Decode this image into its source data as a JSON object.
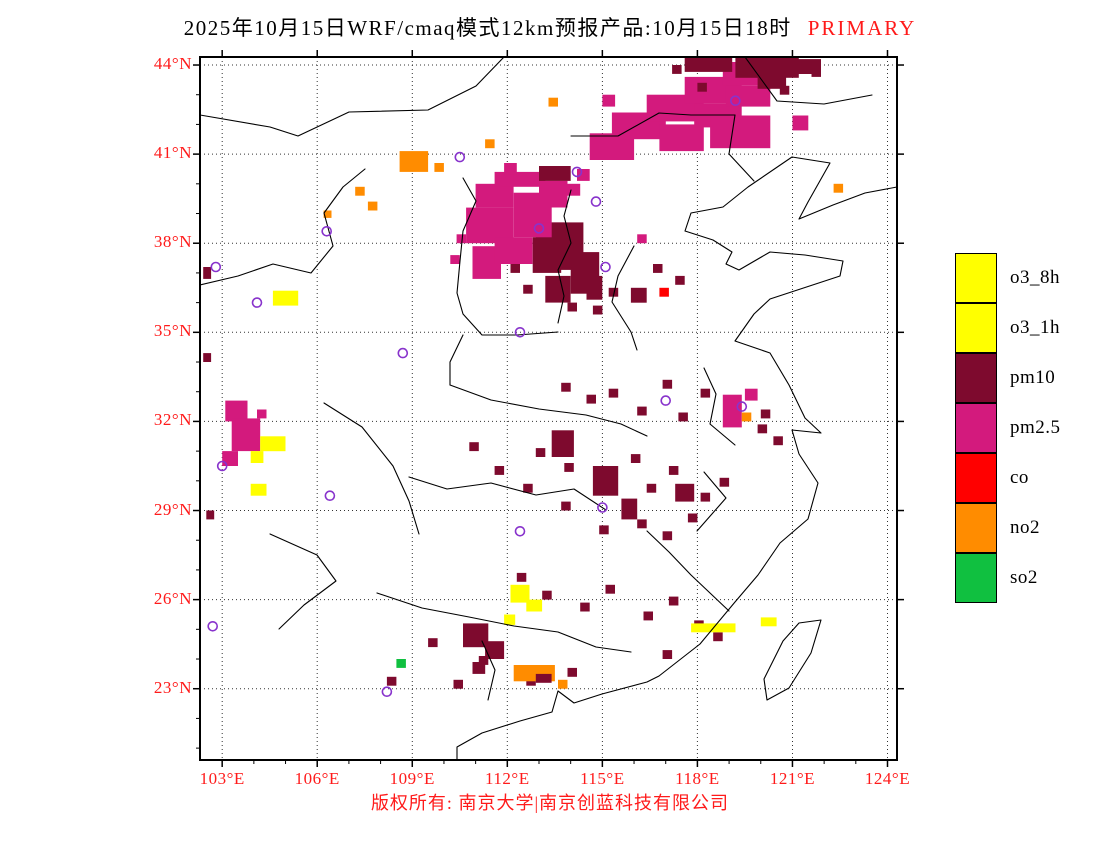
{
  "title": {
    "text": "2025年10月15日WRF/cmaq模式12km预报产品:10月15日18时",
    "tag": "PRIMARY"
  },
  "footer": {
    "text": "版权所有: 南京大学|南京创蓝科技有限公司"
  },
  "colors": {
    "axis_label": "#ff1a1a",
    "frame": "#000000",
    "station": "#8833cc",
    "pollutants": {
      "o3": "#ffff00",
      "pm10": "#7e0a2e",
      "pm25": "#d31a7d",
      "co": "#ff0000",
      "no2": "#ff8c00",
      "so2": "#10c040"
    }
  },
  "legend": {
    "items": [
      {
        "key": "o3_8h",
        "label": "o3_8h",
        "color": "#ffff00"
      },
      {
        "key": "o3_1h",
        "label": "o3_1h",
        "color": "#ffff00"
      },
      {
        "key": "pm10",
        "label": "pm10",
        "color": "#7e0a2e"
      },
      {
        "key": "pm25",
        "label": "pm2.5",
        "color": "#d31a7d"
      },
      {
        "key": "co",
        "label": "co",
        "color": "#ff0000"
      },
      {
        "key": "no2",
        "label": "no2",
        "color": "#ff8c00"
      },
      {
        "key": "so2",
        "label": "so2",
        "color": "#10c040"
      }
    ]
  },
  "map": {
    "lon_min": 102.3,
    "lon_max": 124.3,
    "lat_min": 20.6,
    "lat_max": 44.27,
    "grid_step": 3,
    "x_ticks": [
      {
        "v": 103,
        "label": "103°E"
      },
      {
        "v": 106,
        "label": "106°E"
      },
      {
        "v": 109,
        "label": "109°E"
      },
      {
        "v": 112,
        "label": "112°E"
      },
      {
        "v": 115,
        "label": "115°E"
      },
      {
        "v": 118,
        "label": "118°E"
      },
      {
        "v": 121,
        "label": "121°E"
      },
      {
        "v": 124,
        "label": "124°E"
      }
    ],
    "y_ticks": [
      {
        "v": 23,
        "label": "23°N"
      },
      {
        "v": 26,
        "label": "26°N"
      },
      {
        "v": 29,
        "label": "29°N"
      },
      {
        "v": 32,
        "label": "32°N"
      },
      {
        "v": 35,
        "label": "35°N"
      },
      {
        "v": 38,
        "label": "38°N"
      },
      {
        "v": 41,
        "label": "41°N"
      },
      {
        "v": 44,
        "label": "44°N"
      }
    ],
    "stations": [
      [
        110.5,
        40.9
      ],
      [
        114.2,
        40.4
      ],
      [
        119.2,
        42.8
      ],
      [
        114.8,
        39.4
      ],
      [
        113.0,
        38.5
      ],
      [
        106.3,
        38.4
      ],
      [
        102.8,
        37.2
      ],
      [
        104.1,
        36.0
      ],
      [
        115.1,
        37.2
      ],
      [
        112.4,
        35.0
      ],
      [
        108.7,
        34.3
      ],
      [
        117.0,
        32.7
      ],
      [
        119.4,
        32.5
      ],
      [
        103.0,
        30.5
      ],
      [
        106.4,
        29.5
      ],
      [
        112.4,
        28.3
      ],
      [
        115.0,
        29.1
      ],
      [
        102.7,
        25.1
      ],
      [
        108.2,
        22.9
      ]
    ],
    "cells": [
      [
        111.0,
        40.0,
        1.2,
        0.8,
        "pm25"
      ],
      [
        111.6,
        40.4,
        1.6,
        0.5,
        "pm25"
      ],
      [
        110.7,
        39.2,
        1.5,
        1.2,
        "pm25"
      ],
      [
        112.2,
        39.7,
        1.2,
        1.5,
        "pm25"
      ],
      [
        113.0,
        40.1,
        0.9,
        0.9,
        "pm25"
      ],
      [
        112.9,
        38.7,
        0.9,
        0.9,
        "pm25"
      ],
      [
        110.9,
        37.9,
        0.9,
        1.1,
        "pm25"
      ],
      [
        111.6,
        38.2,
        1.2,
        0.9,
        "pm25"
      ],
      [
        113.9,
        40.0,
        0.4,
        0.4,
        "pm25"
      ],
      [
        114.2,
        40.5,
        0.4,
        0.4,
        "pm25"
      ],
      [
        111.9,
        40.7,
        0.4,
        0.4,
        "pm25"
      ],
      [
        110.4,
        38.3,
        0.3,
        0.3,
        "pm25"
      ],
      [
        110.2,
        37.6,
        0.3,
        0.3,
        "pm25"
      ],
      [
        113.0,
        40.6,
        1.0,
        0.5,
        "pm10"
      ],
      [
        112.8,
        38.2,
        0.9,
        1.2,
        "pm10"
      ],
      [
        113.4,
        38.7,
        1.0,
        1.6,
        "pm10"
      ],
      [
        114.0,
        37.7,
        0.9,
        1.4,
        "pm10"
      ],
      [
        113.2,
        36.9,
        0.8,
        0.9,
        "pm10"
      ],
      [
        114.5,
        36.9,
        0.5,
        0.8,
        "pm10"
      ],
      [
        112.5,
        36.6,
        0.3,
        0.3,
        "pm10"
      ],
      [
        113.9,
        36.0,
        0.3,
        0.3,
        "pm10"
      ],
      [
        114.7,
        35.9,
        0.3,
        0.3,
        "pm10"
      ],
      [
        115.2,
        36.5,
        0.3,
        0.3,
        "pm10"
      ],
      [
        112.1,
        37.3,
        0.3,
        0.3,
        "pm10"
      ],
      [
        114.6,
        41.7,
        1.4,
        0.9,
        "pm25"
      ],
      [
        115.3,
        42.4,
        1.7,
        0.9,
        "pm25"
      ],
      [
        116.4,
        43.0,
        1.8,
        0.9,
        "pm25"
      ],
      [
        117.6,
        43.6,
        1.8,
        0.9,
        "pm25"
      ],
      [
        118.8,
        44.1,
        1.6,
        0.8,
        "pm25"
      ],
      [
        116.8,
        42.0,
        1.4,
        0.9,
        "pm25"
      ],
      [
        117.9,
        42.7,
        1.5,
        0.8,
        "pm25"
      ],
      [
        118.9,
        43.3,
        1.4,
        0.7,
        "pm25"
      ],
      [
        118.4,
        42.3,
        1.9,
        1.1,
        "pm25"
      ],
      [
        121.0,
        42.3,
        0.5,
        0.5,
        "pm25"
      ],
      [
        115.0,
        43.0,
        0.4,
        0.4,
        "pm25"
      ],
      [
        117.6,
        44.27,
        1.5,
        0.5,
        "pm10"
      ],
      [
        119.2,
        44.27,
        2.0,
        0.7,
        "pm10"
      ],
      [
        121.0,
        44.2,
        0.9,
        0.5,
        "pm10"
      ],
      [
        119.9,
        43.7,
        0.9,
        0.5,
        "pm10"
      ],
      [
        118.0,
        43.4,
        0.3,
        0.3,
        "pm10"
      ],
      [
        120.6,
        43.3,
        0.3,
        0.3,
        "pm10"
      ],
      [
        117.2,
        44.0,
        0.3,
        0.3,
        "pm10"
      ],
      [
        121.6,
        43.9,
        0.3,
        0.3,
        "pm10"
      ],
      [
        108.6,
        41.1,
        0.9,
        0.7,
        "no2"
      ],
      [
        109.7,
        40.7,
        0.3,
        0.3,
        "no2"
      ],
      [
        111.3,
        41.5,
        0.3,
        0.3,
        "no2"
      ],
      [
        107.2,
        39.9,
        0.3,
        0.3,
        "no2"
      ],
      [
        107.6,
        39.4,
        0.3,
        0.3,
        "no2"
      ],
      [
        113.3,
        42.9,
        0.3,
        0.3,
        "no2"
      ],
      [
        122.3,
        40.0,
        0.3,
        0.3,
        "no2"
      ],
      [
        106.2,
        39.1,
        0.25,
        0.25,
        "no2"
      ],
      [
        116.8,
        36.5,
        0.3,
        0.3,
        "co"
      ],
      [
        103.1,
        32.7,
        0.7,
        0.7,
        "pm25"
      ],
      [
        103.3,
        32.1,
        0.9,
        1.1,
        "pm25"
      ],
      [
        104.1,
        32.4,
        0.3,
        0.3,
        "pm25"
      ],
      [
        103.0,
        31.0,
        0.5,
        0.5,
        "pm25"
      ],
      [
        104.2,
        31.5,
        0.8,
        0.5,
        "o3"
      ],
      [
        103.9,
        31.0,
        0.4,
        0.4,
        "o3"
      ],
      [
        103.9,
        29.9,
        0.5,
        0.4,
        "o3"
      ],
      [
        104.6,
        36.4,
        0.8,
        0.5,
        "o3"
      ],
      [
        102.4,
        37.2,
        0.25,
        0.4,
        "pm10"
      ],
      [
        102.4,
        34.3,
        0.25,
        0.3,
        "pm10"
      ],
      [
        102.5,
        29.0,
        0.25,
        0.3,
        "pm10"
      ],
      [
        113.7,
        33.3,
        0.3,
        0.3,
        "pm10"
      ],
      [
        114.5,
        32.9,
        0.3,
        0.3,
        "pm10"
      ],
      [
        115.2,
        33.1,
        0.3,
        0.3,
        "pm10"
      ],
      [
        116.1,
        32.5,
        0.3,
        0.3,
        "pm10"
      ],
      [
        116.9,
        33.4,
        0.3,
        0.3,
        "pm10"
      ],
      [
        117.4,
        32.3,
        0.3,
        0.3,
        "pm10"
      ],
      [
        118.1,
        33.1,
        0.3,
        0.3,
        "pm10"
      ],
      [
        120.0,
        32.4,
        0.3,
        0.3,
        "pm10"
      ],
      [
        112.9,
        31.1,
        0.3,
        0.3,
        "pm10"
      ],
      [
        113.8,
        30.6,
        0.3,
        0.3,
        "pm10"
      ],
      [
        115.9,
        30.9,
        0.3,
        0.3,
        "pm10"
      ],
      [
        116.4,
        29.9,
        0.3,
        0.3,
        "pm10"
      ],
      [
        117.1,
        30.5,
        0.3,
        0.3,
        "pm10"
      ],
      [
        118.1,
        29.6,
        0.3,
        0.3,
        "pm10"
      ],
      [
        118.7,
        30.1,
        0.3,
        0.3,
        "pm10"
      ],
      [
        116.1,
        28.7,
        0.3,
        0.3,
        "pm10"
      ],
      [
        116.9,
        28.3,
        0.3,
        0.3,
        "pm10"
      ],
      [
        117.7,
        28.9,
        0.3,
        0.3,
        "pm10"
      ],
      [
        114.9,
        28.5,
        0.3,
        0.3,
        "pm10"
      ],
      [
        113.7,
        29.3,
        0.3,
        0.3,
        "pm10"
      ],
      [
        112.5,
        29.9,
        0.3,
        0.3,
        "pm10"
      ],
      [
        111.6,
        30.5,
        0.3,
        0.3,
        "pm10"
      ],
      [
        110.8,
        31.3,
        0.3,
        0.3,
        "pm10"
      ],
      [
        113.4,
        31.7,
        0.7,
        0.9,
        "pm10"
      ],
      [
        114.7,
        30.5,
        0.8,
        1.0,
        "pm10"
      ],
      [
        115.6,
        29.4,
        0.5,
        0.7,
        "pm10"
      ],
      [
        117.3,
        29.9,
        0.6,
        0.6,
        "pm10"
      ],
      [
        118.8,
        32.9,
        0.6,
        1.1,
        "pm25"
      ],
      [
        119.5,
        33.1,
        0.4,
        0.4,
        "pm25"
      ],
      [
        119.4,
        32.3,
        0.3,
        0.3,
        "no2"
      ],
      [
        119.9,
        31.9,
        0.3,
        0.3,
        "pm10"
      ],
      [
        120.4,
        31.5,
        0.3,
        0.3,
        "pm10"
      ],
      [
        116.6,
        37.3,
        0.3,
        0.3,
        "pm10"
      ],
      [
        117.3,
        36.9,
        0.3,
        0.3,
        "pm10"
      ],
      [
        115.9,
        36.5,
        0.5,
        0.5,
        "pm10"
      ],
      [
        116.1,
        38.3,
        0.3,
        0.3,
        "pm25"
      ],
      [
        112.3,
        26.9,
        0.3,
        0.3,
        "pm10"
      ],
      [
        113.1,
        26.3,
        0.3,
        0.3,
        "pm10"
      ],
      [
        114.3,
        25.9,
        0.3,
        0.3,
        "pm10"
      ],
      [
        115.1,
        26.5,
        0.3,
        0.3,
        "pm10"
      ],
      [
        116.3,
        25.6,
        0.3,
        0.3,
        "pm10"
      ],
      [
        117.1,
        26.1,
        0.3,
        0.3,
        "pm10"
      ],
      [
        117.9,
        25.3,
        0.3,
        0.3,
        "pm10"
      ],
      [
        118.5,
        24.9,
        0.3,
        0.3,
        "pm10"
      ],
      [
        116.9,
        24.3,
        0.3,
        0.3,
        "pm10"
      ],
      [
        113.9,
        23.7,
        0.3,
        0.3,
        "pm10"
      ],
      [
        112.6,
        23.4,
        0.3,
        0.3,
        "pm10"
      ],
      [
        111.1,
        24.1,
        0.3,
        0.3,
        "pm10"
      ],
      [
        110.3,
        23.3,
        0.3,
        0.3,
        "pm10"
      ],
      [
        109.5,
        24.7,
        0.3,
        0.3,
        "pm10"
      ],
      [
        108.2,
        23.4,
        0.3,
        0.3,
        "pm10"
      ],
      [
        110.6,
        25.2,
        0.8,
        0.8,
        "pm10"
      ],
      [
        111.3,
        24.6,
        0.6,
        0.6,
        "pm10"
      ],
      [
        110.9,
        23.9,
        0.4,
        0.4,
        "pm10"
      ],
      [
        112.2,
        23.8,
        1.3,
        0.55,
        "no2"
      ],
      [
        113.6,
        23.3,
        0.3,
        0.3,
        "no2"
      ],
      [
        112.9,
        23.5,
        0.5,
        0.3,
        "pm10"
      ],
      [
        112.1,
        26.5,
        0.6,
        0.6,
        "o3"
      ],
      [
        112.6,
        26.0,
        0.5,
        0.4,
        "o3"
      ],
      [
        111.9,
        25.5,
        0.35,
        0.35,
        "o3"
      ],
      [
        117.8,
        25.2,
        1.4,
        0.3,
        "o3"
      ],
      [
        120.0,
        25.4,
        0.5,
        0.3,
        "o3"
      ],
      [
        108.5,
        24.0,
        0.3,
        0.3,
        "so2"
      ]
    ]
  }
}
